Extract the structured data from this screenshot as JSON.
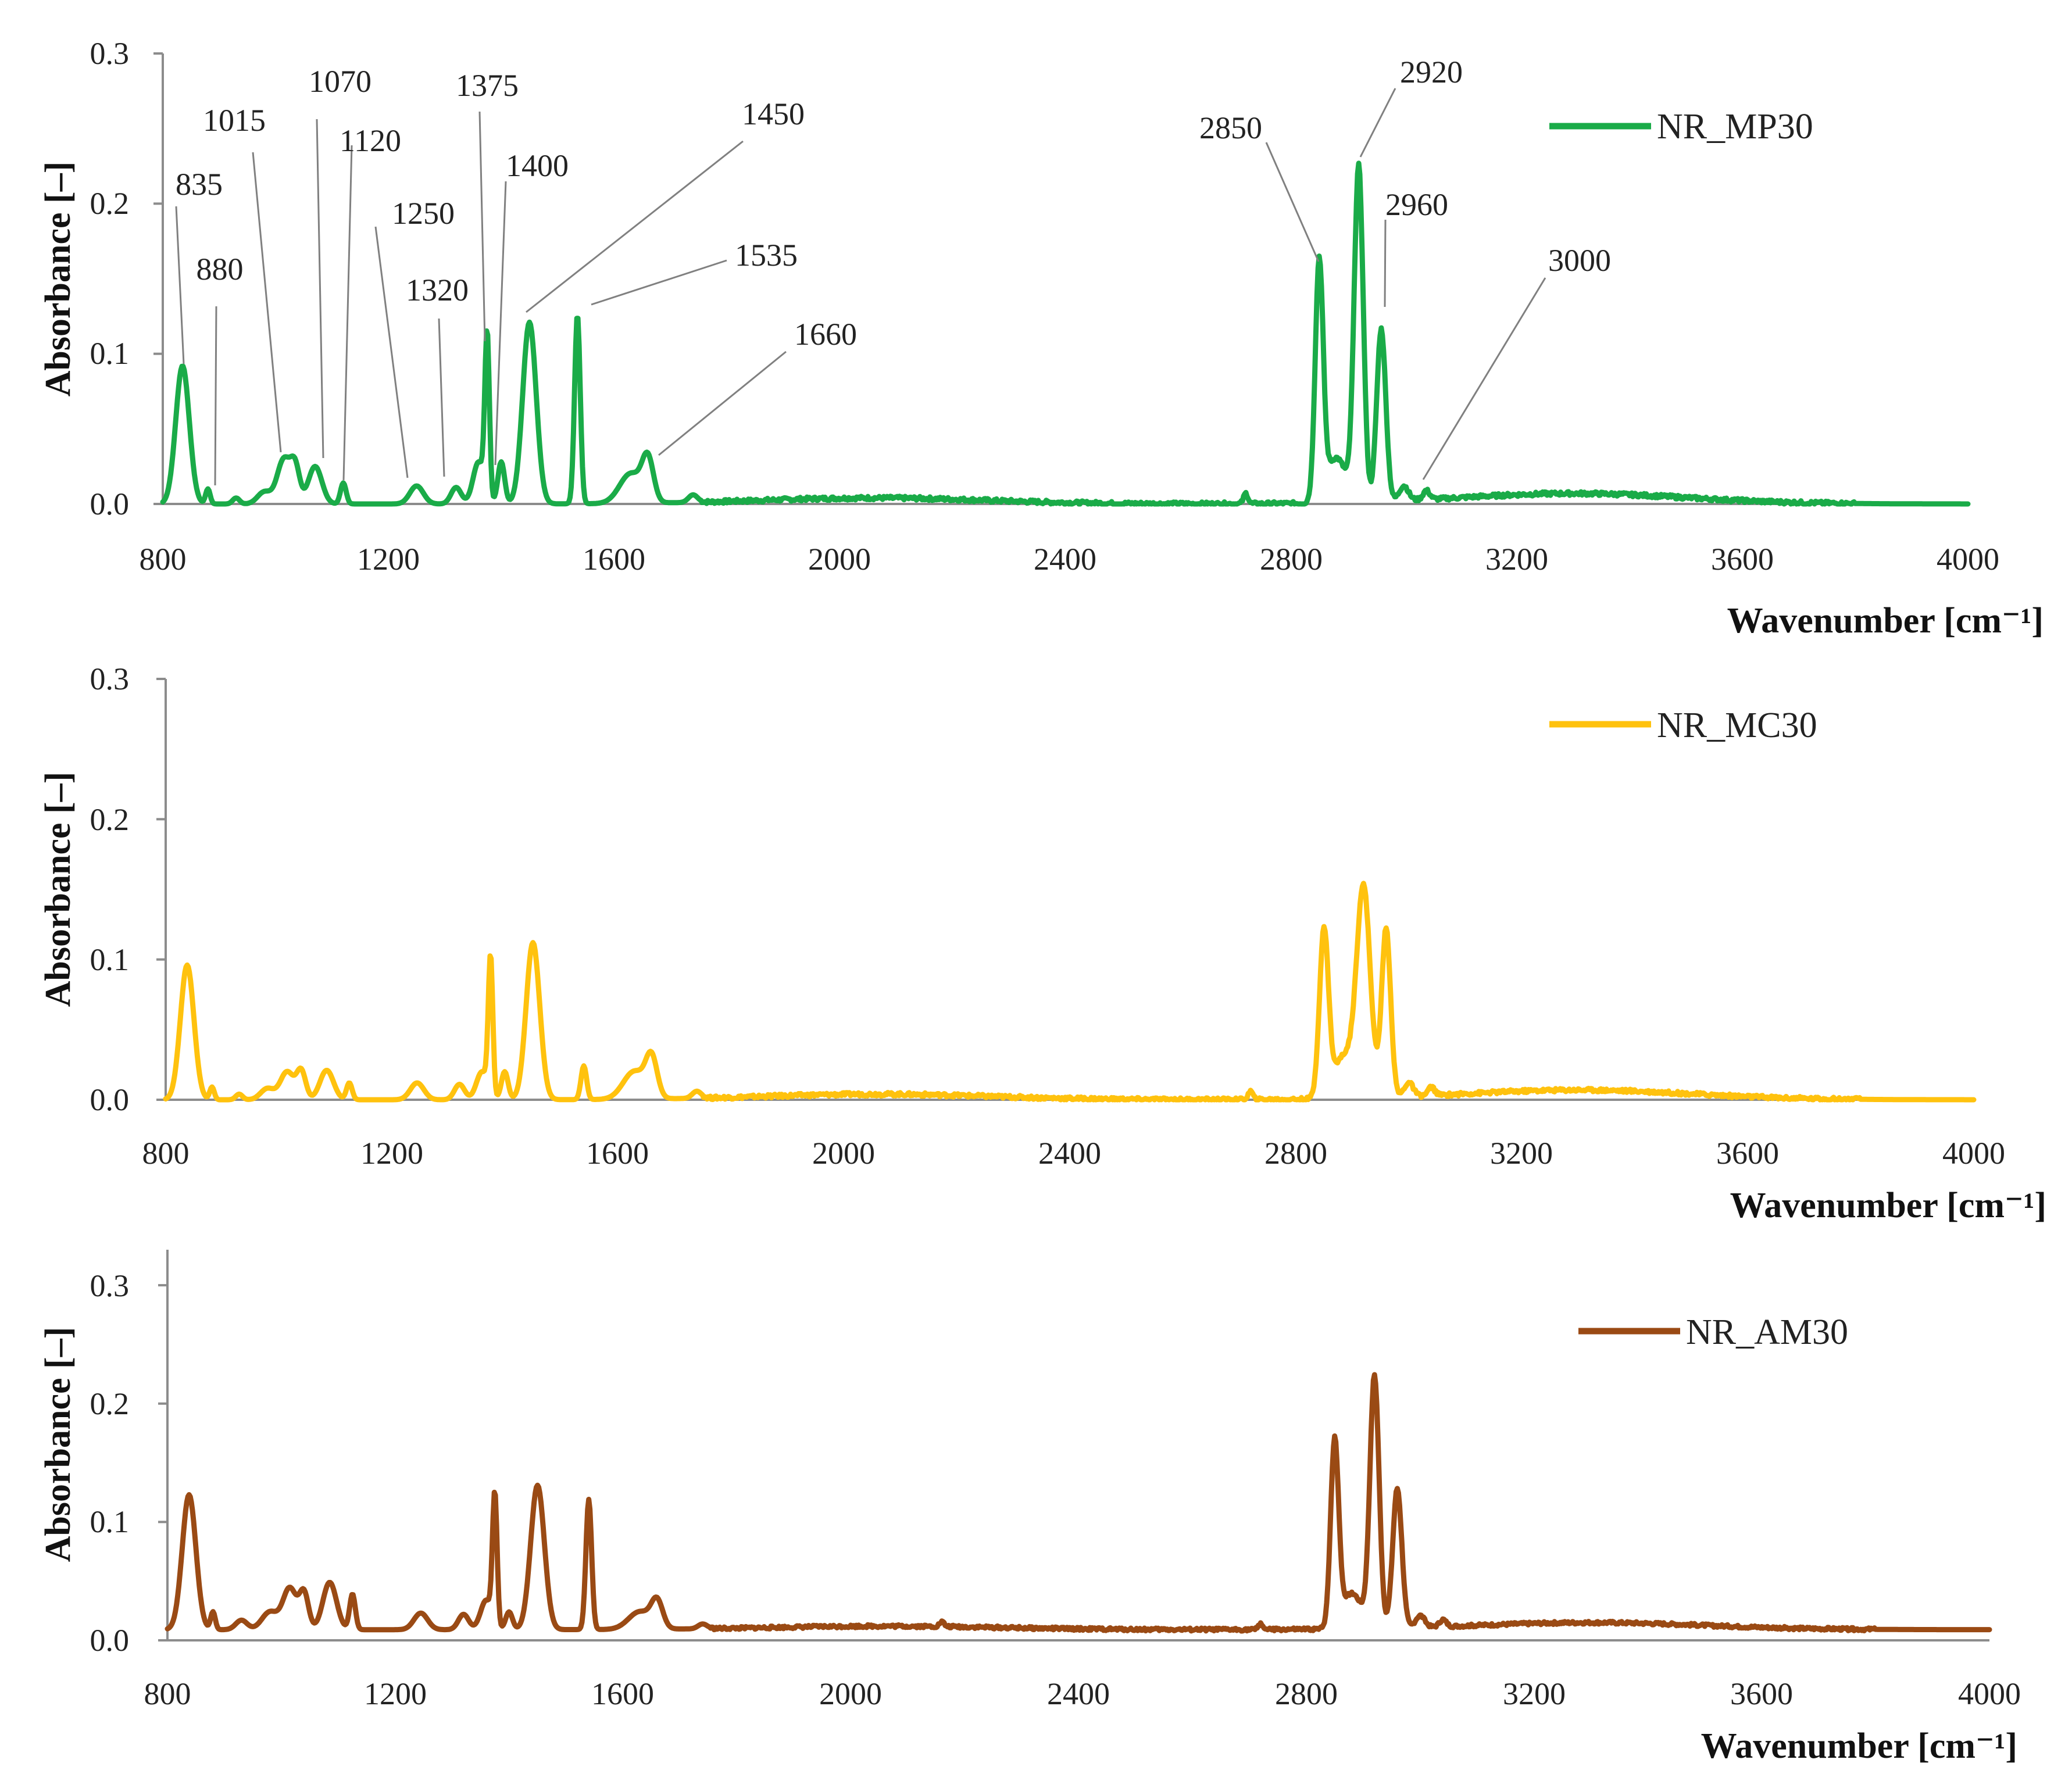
{
  "chart_data": [
    {
      "type": "line",
      "title": "",
      "xlabel": "Wavenumber [cm⁻¹]",
      "ylabel": "Absorbance [–]",
      "xlim": [
        800,
        4000
      ],
      "ylim": [
        0,
        0.3
      ],
      "xticks": [
        "800",
        "1200",
        "1600",
        "2000",
        "2400",
        "2800",
        "3200",
        "3600",
        "4000"
      ],
      "yticks": [
        "0.0",
        "0.1",
        "0.2",
        "0.3"
      ],
      "legend_position": "top-right",
      "series": [
        {
          "name": "NR_MP30",
          "color": "#1aab48",
          "baseline": 0.0,
          "peaks": [
            [
              835,
              0.092,
              12
            ],
            [
              880,
              0.01,
              4
            ],
            [
              930,
              0.004,
              6
            ],
            [
              980,
              0.008,
              12
            ],
            [
              1015,
              0.03,
              12
            ],
            [
              1035,
              0.022,
              8
            ],
            [
              1070,
              0.025,
              12
            ],
            [
              1120,
              0.014,
              5
            ],
            [
              1250,
              0.012,
              12
            ],
            [
              1320,
              0.011,
              9
            ],
            [
              1360,
              0.028,
              10
            ],
            [
              1375,
              0.108,
              4
            ],
            [
              1400,
              0.028,
              6
            ],
            [
              1450,
              0.121,
              12
            ],
            [
              1535,
              0.126,
              5
            ],
            [
              1630,
              0.02,
              20
            ],
            [
              1660,
              0.027,
              10
            ],
            [
              1740,
              0.005,
              8
            ],
            [
              2060,
              0.004,
              200
            ],
            [
              2720,
              0.007,
              4
            ],
            [
              2850,
              0.157,
              7
            ],
            [
              2880,
              0.03,
              18
            ],
            [
              2920,
              0.222,
              8
            ],
            [
              2960,
              0.115,
              8
            ],
            [
              3000,
              0.01,
              8
            ],
            [
              3040,
              0.006,
              6
            ],
            [
              3300,
              0.007,
              200
            ]
          ]
        },
        {
          "name": "NR_MC30",
          "color": "#ffc20e",
          "baseline": 0.0,
          "peaks": [
            [
              838,
              0.096,
              12
            ],
            [
              882,
              0.009,
              4
            ],
            [
              930,
              0.004,
              6
            ],
            [
              980,
              0.008,
              12
            ],
            [
              1015,
              0.02,
              12
            ],
            [
              1040,
              0.02,
              8
            ],
            [
              1085,
              0.021,
              12
            ],
            [
              1125,
              0.012,
              5
            ],
            [
              1245,
              0.012,
              12
            ],
            [
              1320,
              0.011,
              9
            ],
            [
              1360,
              0.02,
              10
            ],
            [
              1375,
              0.098,
              4
            ],
            [
              1400,
              0.02,
              6
            ],
            [
              1450,
              0.112,
              12
            ],
            [
              1540,
              0.024,
              5
            ],
            [
              1630,
              0.02,
              20
            ],
            [
              1660,
              0.027,
              10
            ],
            [
              1740,
              0.005,
              8
            ],
            [
              2060,
              0.004,
              200
            ],
            [
              2720,
              0.006,
              4
            ],
            [
              2850,
              0.118,
              8
            ],
            [
              2885,
              0.03,
              18
            ],
            [
              2920,
              0.148,
              12
            ],
            [
              2960,
              0.12,
              8
            ],
            [
              3000,
              0.01,
              8
            ],
            [
              3040,
              0.006,
              6
            ],
            [
              3300,
              0.007,
              200
            ]
          ]
        },
        {
          "name": "NR_AM30",
          "color": "#9a4a14",
          "baseline": 0.009,
          "peaks": [
            [
              838,
              0.114,
              12
            ],
            [
              880,
              0.015,
              4
            ],
            [
              930,
              0.008,
              10
            ],
            [
              980,
              0.015,
              14
            ],
            [
              1015,
              0.035,
              12
            ],
            [
              1040,
              0.03,
              8
            ],
            [
              1085,
              0.04,
              12
            ],
            [
              1125,
              0.03,
              5
            ],
            [
              1245,
              0.014,
              12
            ],
            [
              1320,
              0.013,
              9
            ],
            [
              1360,
              0.025,
              10
            ],
            [
              1375,
              0.11,
              4
            ],
            [
              1400,
              0.015,
              6
            ],
            [
              1450,
              0.122,
              12
            ],
            [
              1540,
              0.11,
              5
            ],
            [
              1630,
              0.015,
              20
            ],
            [
              1660,
              0.022,
              10
            ],
            [
              1740,
              0.004,
              8
            ],
            [
              2060,
              0.003,
              200
            ],
            [
              2160,
              0.004,
              4
            ],
            [
              2720,
              0.005,
              4
            ],
            [
              2850,
              0.155,
              7
            ],
            [
              2880,
              0.03,
              18
            ],
            [
              2920,
              0.212,
              8
            ],
            [
              2960,
              0.118,
              8
            ],
            [
              3000,
              0.01,
              8
            ],
            [
              3040,
              0.006,
              6
            ],
            [
              3300,
              0.006,
              200
            ]
          ]
        }
      ],
      "annotations": [
        {
          "label": "835",
          "x": 835,
          "y": 0.092
        },
        {
          "label": "880",
          "x": 880,
          "y": 0.01
        },
        {
          "label": "1015",
          "x": 1015,
          "y": 0.032
        },
        {
          "label": "1070",
          "x": 1070,
          "y": 0.028
        },
        {
          "label": "1120",
          "x": 1120,
          "y": 0.016
        },
        {
          "label": "1250",
          "x": 1250,
          "y": 0.014
        },
        {
          "label": "1320",
          "x": 1320,
          "y": 0.01
        },
        {
          "label": "1375",
          "x": 1375,
          "y": 0.108
        },
        {
          "label": "1400",
          "x": 1400,
          "y": 0.028
        },
        {
          "label": "1450",
          "x": 1450,
          "y": 0.121
        },
        {
          "label": "1535",
          "x": 1535,
          "y": 0.126
        },
        {
          "label": "1660",
          "x": 1660,
          "y": 0.03
        },
        {
          "label": "2850",
          "x": 2850,
          "y": 0.158
        },
        {
          "label": "2920",
          "x": 2920,
          "y": 0.226
        },
        {
          "label": "2960",
          "x": 2960,
          "y": 0.12
        },
        {
          "label": "3000",
          "x": 3000,
          "y": 0.012
        }
      ]
    }
  ]
}
